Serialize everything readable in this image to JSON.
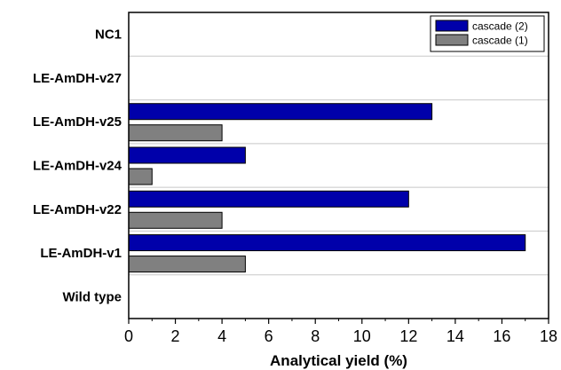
{
  "chart_data": {
    "type": "bar",
    "orientation": "horizontal",
    "categories": [
      "NC1",
      "LE-AmDH-v27",
      "LE-AmDH-v25",
      "LE-AmDH-v24",
      "LE-AmDH-v22",
      "LE-AmDH-v1",
      "Wild type"
    ],
    "series": [
      {
        "name": "cascade (2)",
        "color": "#0000aa",
        "values": [
          0,
          0,
          13,
          5,
          12,
          17,
          0
        ]
      },
      {
        "name": "cascade (1)",
        "color": "#808080",
        "values": [
          0,
          0,
          4,
          1,
          4,
          5,
          0
        ]
      }
    ],
    "xlabel": "Analytical yield (%)",
    "xlim": [
      0,
      18
    ],
    "xticks": [
      "0",
      "2",
      "4",
      "6",
      "8",
      "10",
      "12",
      "14",
      "16",
      "18"
    ],
    "grid": "horizontal-separators",
    "legend": "top-right"
  }
}
